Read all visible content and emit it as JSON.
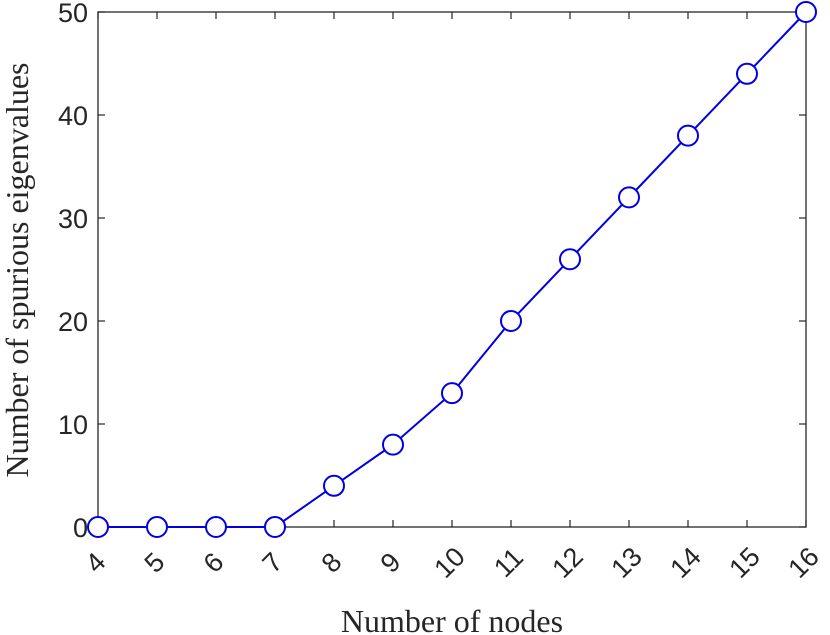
{
  "chart_data": {
    "type": "line",
    "title": "",
    "xlabel": "Number of nodes",
    "ylabel": "Number of spurious eigenvalues",
    "x": [
      4,
      5,
      6,
      7,
      8,
      9,
      10,
      11,
      12,
      13,
      14,
      15,
      16
    ],
    "series": [
      {
        "values": [
          0,
          0,
          0,
          0,
          4,
          8,
          13,
          20,
          26,
          32,
          38,
          44,
          50
        ],
        "color": "#0000e0",
        "marker": "circle"
      }
    ],
    "xticks": [
      "4",
      "5",
      "6",
      "7",
      "8",
      "9",
      "10",
      "11",
      "12",
      "13",
      "14",
      "15",
      "16"
    ],
    "yticks": [
      "0",
      "10",
      "20",
      "30",
      "40",
      "50"
    ],
    "xlim": [
      4,
      16
    ],
    "ylim": [
      0,
      50
    ],
    "grid": false,
    "legend": "none"
  }
}
